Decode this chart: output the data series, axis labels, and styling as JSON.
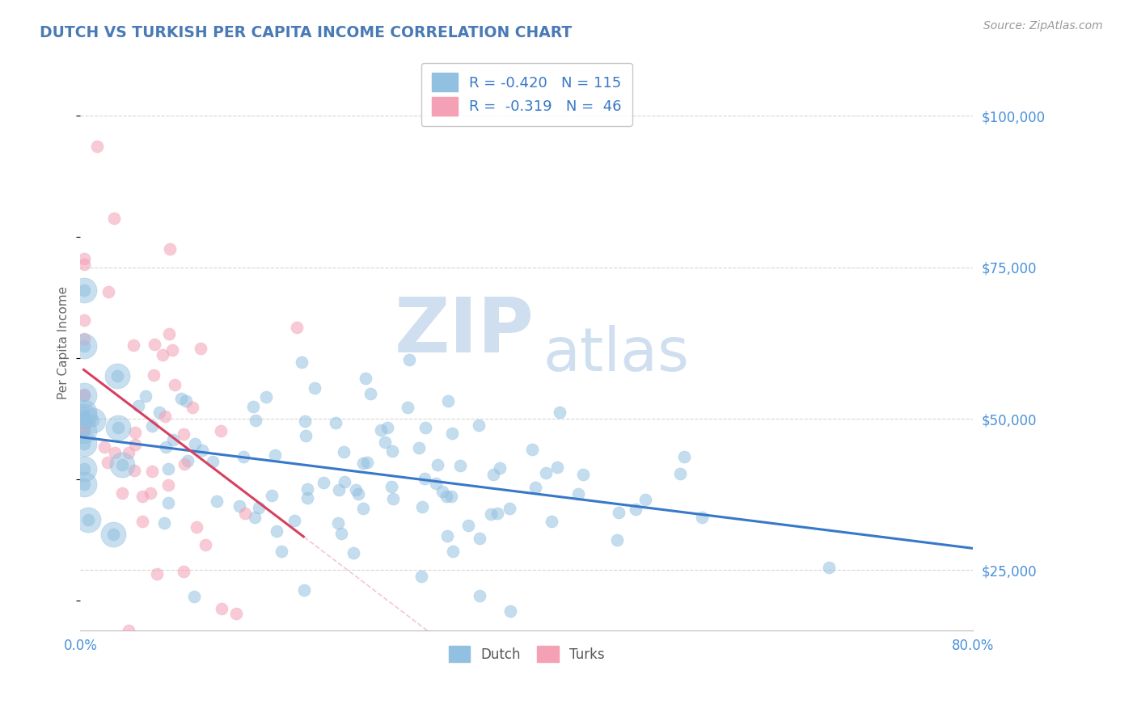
{
  "title": "DUTCH VS TURKISH PER CAPITA INCOME CORRELATION CHART",
  "source": "Source: ZipAtlas.com",
  "ylabel": "Per Capita Income",
  "xlim": [
    0.0,
    80.0
  ],
  "ylim": [
    15000,
    110000
  ],
  "ytick_vals": [
    25000,
    50000,
    75000,
    100000
  ],
  "ytick_labels": [
    "$25,000",
    "$50,000",
    "$75,000",
    "$100,000"
  ],
  "xtick_vals": [
    0.0,
    80.0
  ],
  "xtick_labels": [
    "0.0%",
    "80.0%"
  ],
  "dutch_color": "#92c0e0",
  "turks_color": "#f4a0b5",
  "trendline_dutch_color": "#3878c8",
  "trendline_turks_color": "#d84060",
  "trendline_turks_ext_color": "#f0b0c0",
  "watermark_zip": "ZIP",
  "watermark_atlas": "atlas",
  "watermark_color": "#d0dff0",
  "title_color": "#4a7ab5",
  "axis_label_color": "#666666",
  "ytick_color": "#4a90d9",
  "grid_color": "#cccccc",
  "background_color": "#ffffff",
  "legend_label_dutch": "Dutch",
  "legend_label_turks": "Turks",
  "dutch_n": 115,
  "turks_n": 46,
  "dutch_r": -0.42,
  "turks_r": -0.319,
  "dot_size": 120,
  "dot_alpha": 0.55
}
